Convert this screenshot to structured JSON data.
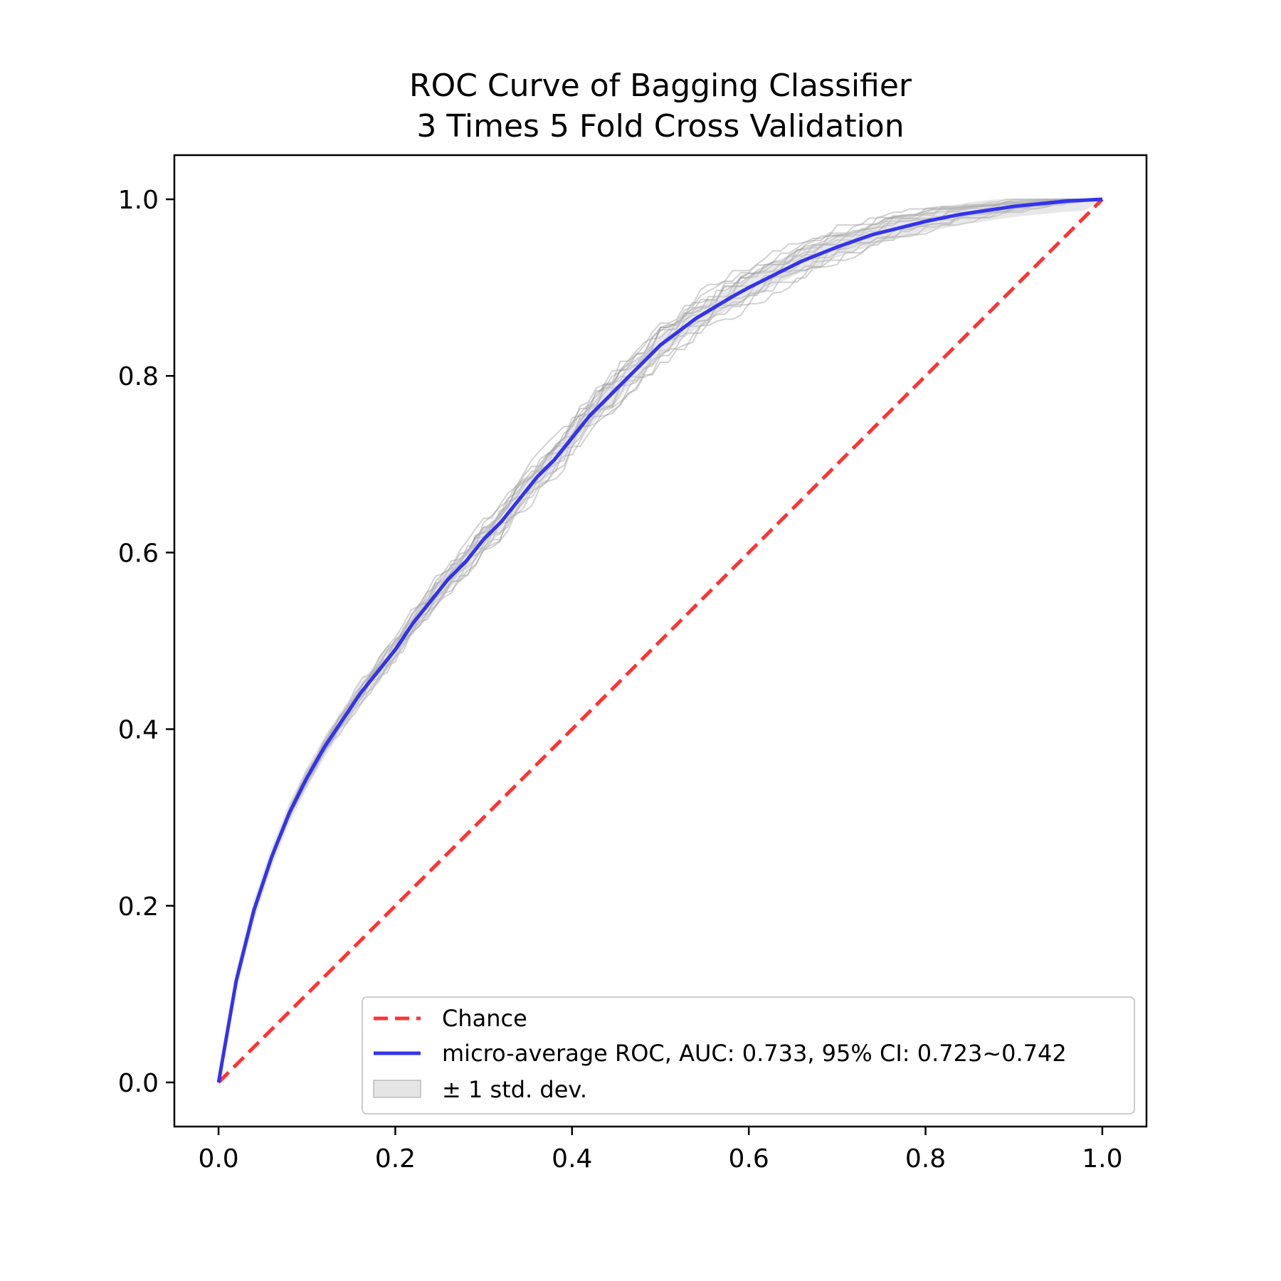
{
  "chart_data": {
    "type": "line",
    "title_lines": [
      "ROC Curve of Bagging Classifier",
      "3 Times 5 Fold Cross Validation"
    ],
    "xlabel": "",
    "ylabel": "",
    "xlim": [
      -0.05,
      1.05
    ],
    "ylim": [
      -0.05,
      1.05
    ],
    "xticks": [
      0.0,
      0.2,
      0.4,
      0.6,
      0.8,
      1.0
    ],
    "yticks": [
      0.0,
      0.2,
      0.4,
      0.6,
      0.8,
      1.0
    ],
    "xtick_labels": [
      "0.0",
      "0.2",
      "0.4",
      "0.6",
      "0.8",
      "1.0"
    ],
    "ytick_labels": [
      "0.0",
      "0.2",
      "0.4",
      "0.6",
      "0.8",
      "1.0"
    ],
    "grid": false,
    "legend": {
      "position": "lower-right",
      "entries": [
        {
          "label": "Chance",
          "style": "dashed",
          "color": "#ff3333"
        },
        {
          "label": "micro-average ROC, AUC: 0.733, 95% CI: 0.723~0.742",
          "style": "solid",
          "color": "#3333ee"
        },
        {
          "label": "± 1 std. dev.",
          "style": "band",
          "color": "#cccccc"
        }
      ]
    },
    "chance": {
      "x": [
        0,
        1
      ],
      "y": [
        0,
        1
      ],
      "color": "#ff3333"
    },
    "mean_roc": {
      "color": "#3333ee",
      "x": [
        0,
        0.02,
        0.04,
        0.06,
        0.08,
        0.1,
        0.12,
        0.14,
        0.16,
        0.18,
        0.2,
        0.22,
        0.24,
        0.26,
        0.28,
        0.3,
        0.32,
        0.34,
        0.36,
        0.38,
        0.4,
        0.42,
        0.44,
        0.46,
        0.48,
        0.5,
        0.52,
        0.54,
        0.56,
        0.58,
        0.6,
        0.62,
        0.64,
        0.66,
        0.68,
        0.7,
        0.72,
        0.74,
        0.76,
        0.78,
        0.8,
        0.82,
        0.84,
        0.86,
        0.88,
        0.9,
        0.92,
        0.94,
        0.96,
        0.98,
        1.0
      ],
      "y": [
        0,
        0.115,
        0.195,
        0.255,
        0.305,
        0.345,
        0.38,
        0.41,
        0.44,
        0.465,
        0.49,
        0.52,
        0.545,
        0.57,
        0.59,
        0.615,
        0.635,
        0.66,
        0.685,
        0.705,
        0.73,
        0.755,
        0.775,
        0.795,
        0.815,
        0.835,
        0.85,
        0.865,
        0.877,
        0.889,
        0.9,
        0.91,
        0.92,
        0.93,
        0.938,
        0.946,
        0.953,
        0.96,
        0.965,
        0.97,
        0.975,
        0.979,
        0.983,
        0.986,
        0.989,
        0.992,
        0.994,
        0.996,
        0.998,
        0.999,
        1.0
      ]
    },
    "std_band": {
      "color": "#cccccc",
      "halfwidth": 0.012
    },
    "fold_curves": {
      "count": 15,
      "color": "#999999"
    }
  }
}
